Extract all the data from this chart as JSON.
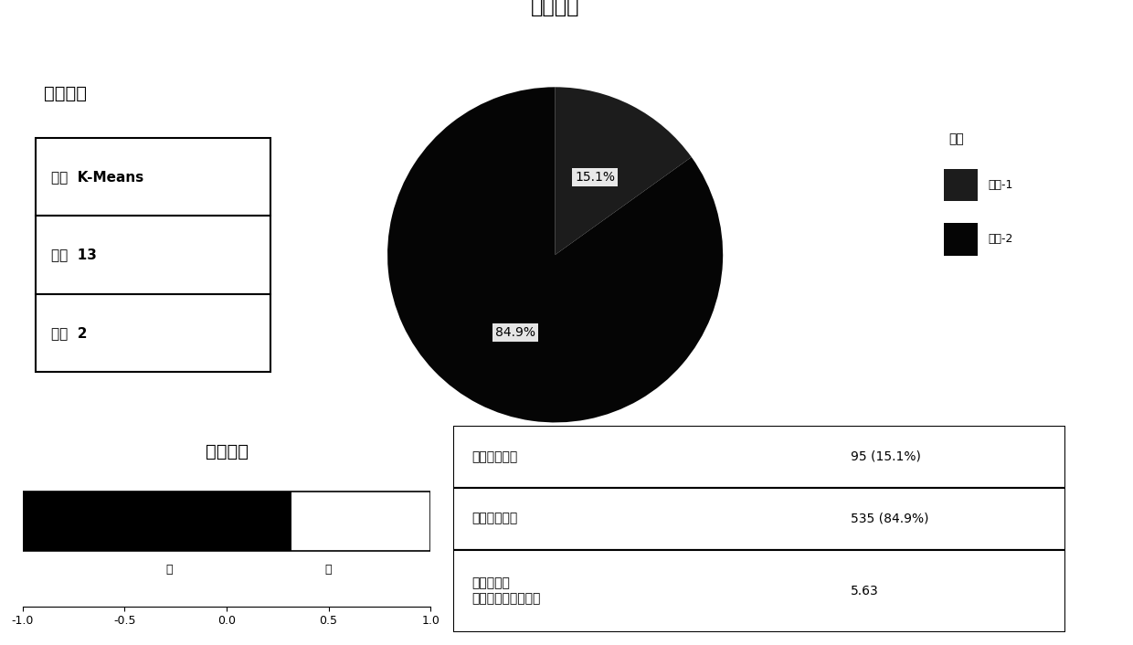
{
  "title_pie": "聚类大小",
  "pie_values": [
    15.1,
    84.9
  ],
  "pie_labels": [
    "15.1%",
    "84.9%"
  ],
  "pie_colors": [
    "#1c1c1c",
    "#050505"
  ],
  "legend_title": "聚类",
  "legend_labels": [
    "聚类-1",
    "聚类-2"
  ],
  "model_title": "模型概要",
  "model_rows": [
    [
      "算法  K-Means"
    ],
    [
      "输入  13"
    ],
    [
      "聚类  2"
    ]
  ],
  "quality_title": "聚类质量",
  "quality_bar_value": 0.32,
  "quality_xlim": [
    -1.0,
    1.0
  ],
  "quality_xticks": [
    -1.0,
    -0.5,
    0.0,
    0.5,
    1.0
  ],
  "quality_label_bad": "差",
  "quality_label_good": "好",
  "stats_rows": [
    [
      "最小聚类大小",
      "95 (15.1%)"
    ],
    [
      "最大聚类大小",
      "535 (84.9%)"
    ],
    [
      "大小比率：\n最大聚类比最小聚类",
      "5.63"
    ]
  ],
  "bg_color": "#ffffff",
  "font_size_title": 14,
  "font_size_model": 11
}
